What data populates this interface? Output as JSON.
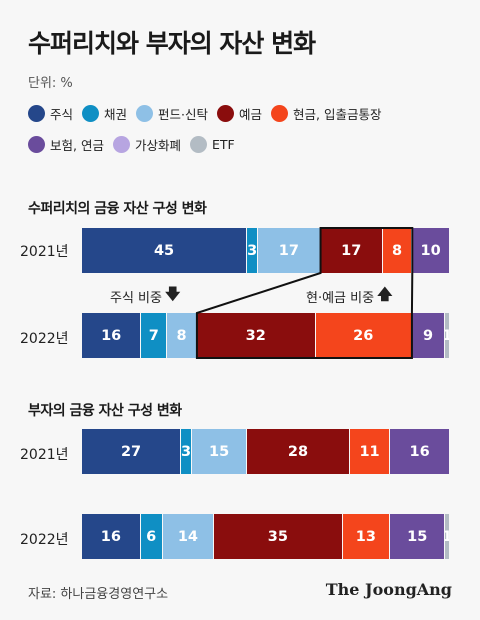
{
  "title": "수퍼리치와 부자의 자산 변화",
  "unit": "단위: %",
  "legend": [
    {
      "name": "주식",
      "color": "#25478a"
    },
    {
      "name": "채권",
      "color": "#0f8fc4"
    },
    {
      "name": "펀드·신탁",
      "color": "#8ec0e6"
    },
    {
      "name": "예금",
      "color": "#8a0d0d"
    },
    {
      "name": "현금, 입출금통장",
      "color": "#f4451c"
    },
    {
      "name": "보험, 연금",
      "color": "#6a4c9c"
    },
    {
      "name": "가상화폐",
      "color": "#b7a5e1"
    },
    {
      "name": "ETF",
      "color": "#b3bcc4"
    }
  ],
  "annotations": {
    "stock": "주식 비중",
    "cash": "현·예금 비중"
  },
  "source": "자료: 하나금융경영연구소",
  "brand": "The JoongAng",
  "chart_data": [
    {
      "type": "bar",
      "stacked": true,
      "orientation": "horizontal",
      "title": "수퍼리치의 금융 자산 구성 변화",
      "categories": [
        "2021년",
        "2022년"
      ],
      "series": [
        {
          "name": "주식",
          "values": [
            45,
            16
          ]
        },
        {
          "name": "채권",
          "values": [
            3,
            7
          ]
        },
        {
          "name": "펀드·신탁",
          "values": [
            17,
            8
          ]
        },
        {
          "name": "예금",
          "values": [
            17,
            32
          ]
        },
        {
          "name": "현금, 입출금통장",
          "values": [
            8,
            26
          ]
        },
        {
          "name": "보험, 연금",
          "values": [
            10,
            9
          ]
        },
        {
          "name": "가상화폐",
          "values": [
            0,
            0
          ]
        },
        {
          "name": "ETF",
          "values": [
            0,
            1
          ]
        }
      ]
    },
    {
      "type": "bar",
      "stacked": true,
      "orientation": "horizontal",
      "title": "부자의 금융 자산 구성 변화",
      "categories": [
        "2021년",
        "2022년"
      ],
      "series": [
        {
          "name": "주식",
          "values": [
            27,
            16
          ]
        },
        {
          "name": "채권",
          "values": [
            3,
            6
          ]
        },
        {
          "name": "펀드·신탁",
          "values": [
            15,
            14
          ]
        },
        {
          "name": "예금",
          "values": [
            28,
            35
          ]
        },
        {
          "name": "현금, 입출금통장",
          "values": [
            11,
            13
          ]
        },
        {
          "name": "보험, 연금",
          "values": [
            16,
            15
          ]
        },
        {
          "name": "가상화폐",
          "values": [
            0,
            0
          ]
        },
        {
          "name": "ETF",
          "values": [
            0,
            1
          ]
        }
      ]
    }
  ]
}
